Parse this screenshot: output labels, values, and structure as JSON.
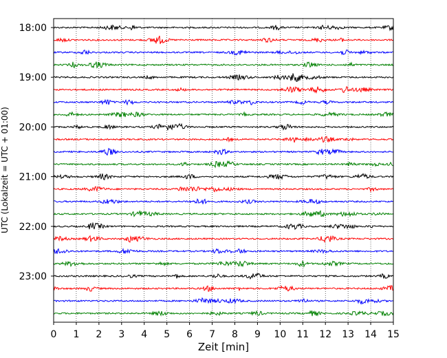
{
  "chart_data": {
    "type": "line",
    "title": "",
    "xlabel": "Zeit  [min]",
    "ylabel": "UTC (Lokalzeit = UTC + 01:00)",
    "xlim": [
      0,
      15
    ],
    "x_ticks": [
      0,
      1,
      2,
      3,
      4,
      5,
      6,
      7,
      8,
      9,
      10,
      11,
      12,
      13,
      14,
      15
    ],
    "y_tick_labels": [
      "18:00",
      "19:00",
      "20:00",
      "21:00",
      "22:00",
      "23:00"
    ],
    "grid": "vertical dotted",
    "trace_colors": [
      "#000000",
      "#ff0000",
      "#0000ff",
      "#008000"
    ],
    "series": [
      {
        "start": "18:00",
        "color": "#000000"
      },
      {
        "start": "18:15",
        "color": "#ff0000"
      },
      {
        "start": "18:30",
        "color": "#0000ff"
      },
      {
        "start": "18:45",
        "color": "#008000"
      },
      {
        "start": "19:00",
        "color": "#000000"
      },
      {
        "start": "19:15",
        "color": "#ff0000"
      },
      {
        "start": "19:30",
        "color": "#0000ff"
      },
      {
        "start": "19:45",
        "color": "#008000"
      },
      {
        "start": "20:00",
        "color": "#000000"
      },
      {
        "start": "20:15",
        "color": "#ff0000"
      },
      {
        "start": "20:30",
        "color": "#0000ff"
      },
      {
        "start": "20:45",
        "color": "#008000"
      },
      {
        "start": "21:00",
        "color": "#000000"
      },
      {
        "start": "21:15",
        "color": "#ff0000"
      },
      {
        "start": "21:30",
        "color": "#0000ff"
      },
      {
        "start": "21:45",
        "color": "#008000"
      },
      {
        "start": "22:00",
        "color": "#000000"
      },
      {
        "start": "22:15",
        "color": "#ff0000"
      },
      {
        "start": "22:30",
        "color": "#0000ff"
      },
      {
        "start": "22:45",
        "color": "#008000"
      },
      {
        "start": "23:00",
        "color": "#000000"
      },
      {
        "start": "23:15",
        "color": "#ff0000"
      },
      {
        "start": "23:30",
        "color": "#0000ff"
      },
      {
        "start": "23:45",
        "color": "#008000"
      }
    ]
  }
}
